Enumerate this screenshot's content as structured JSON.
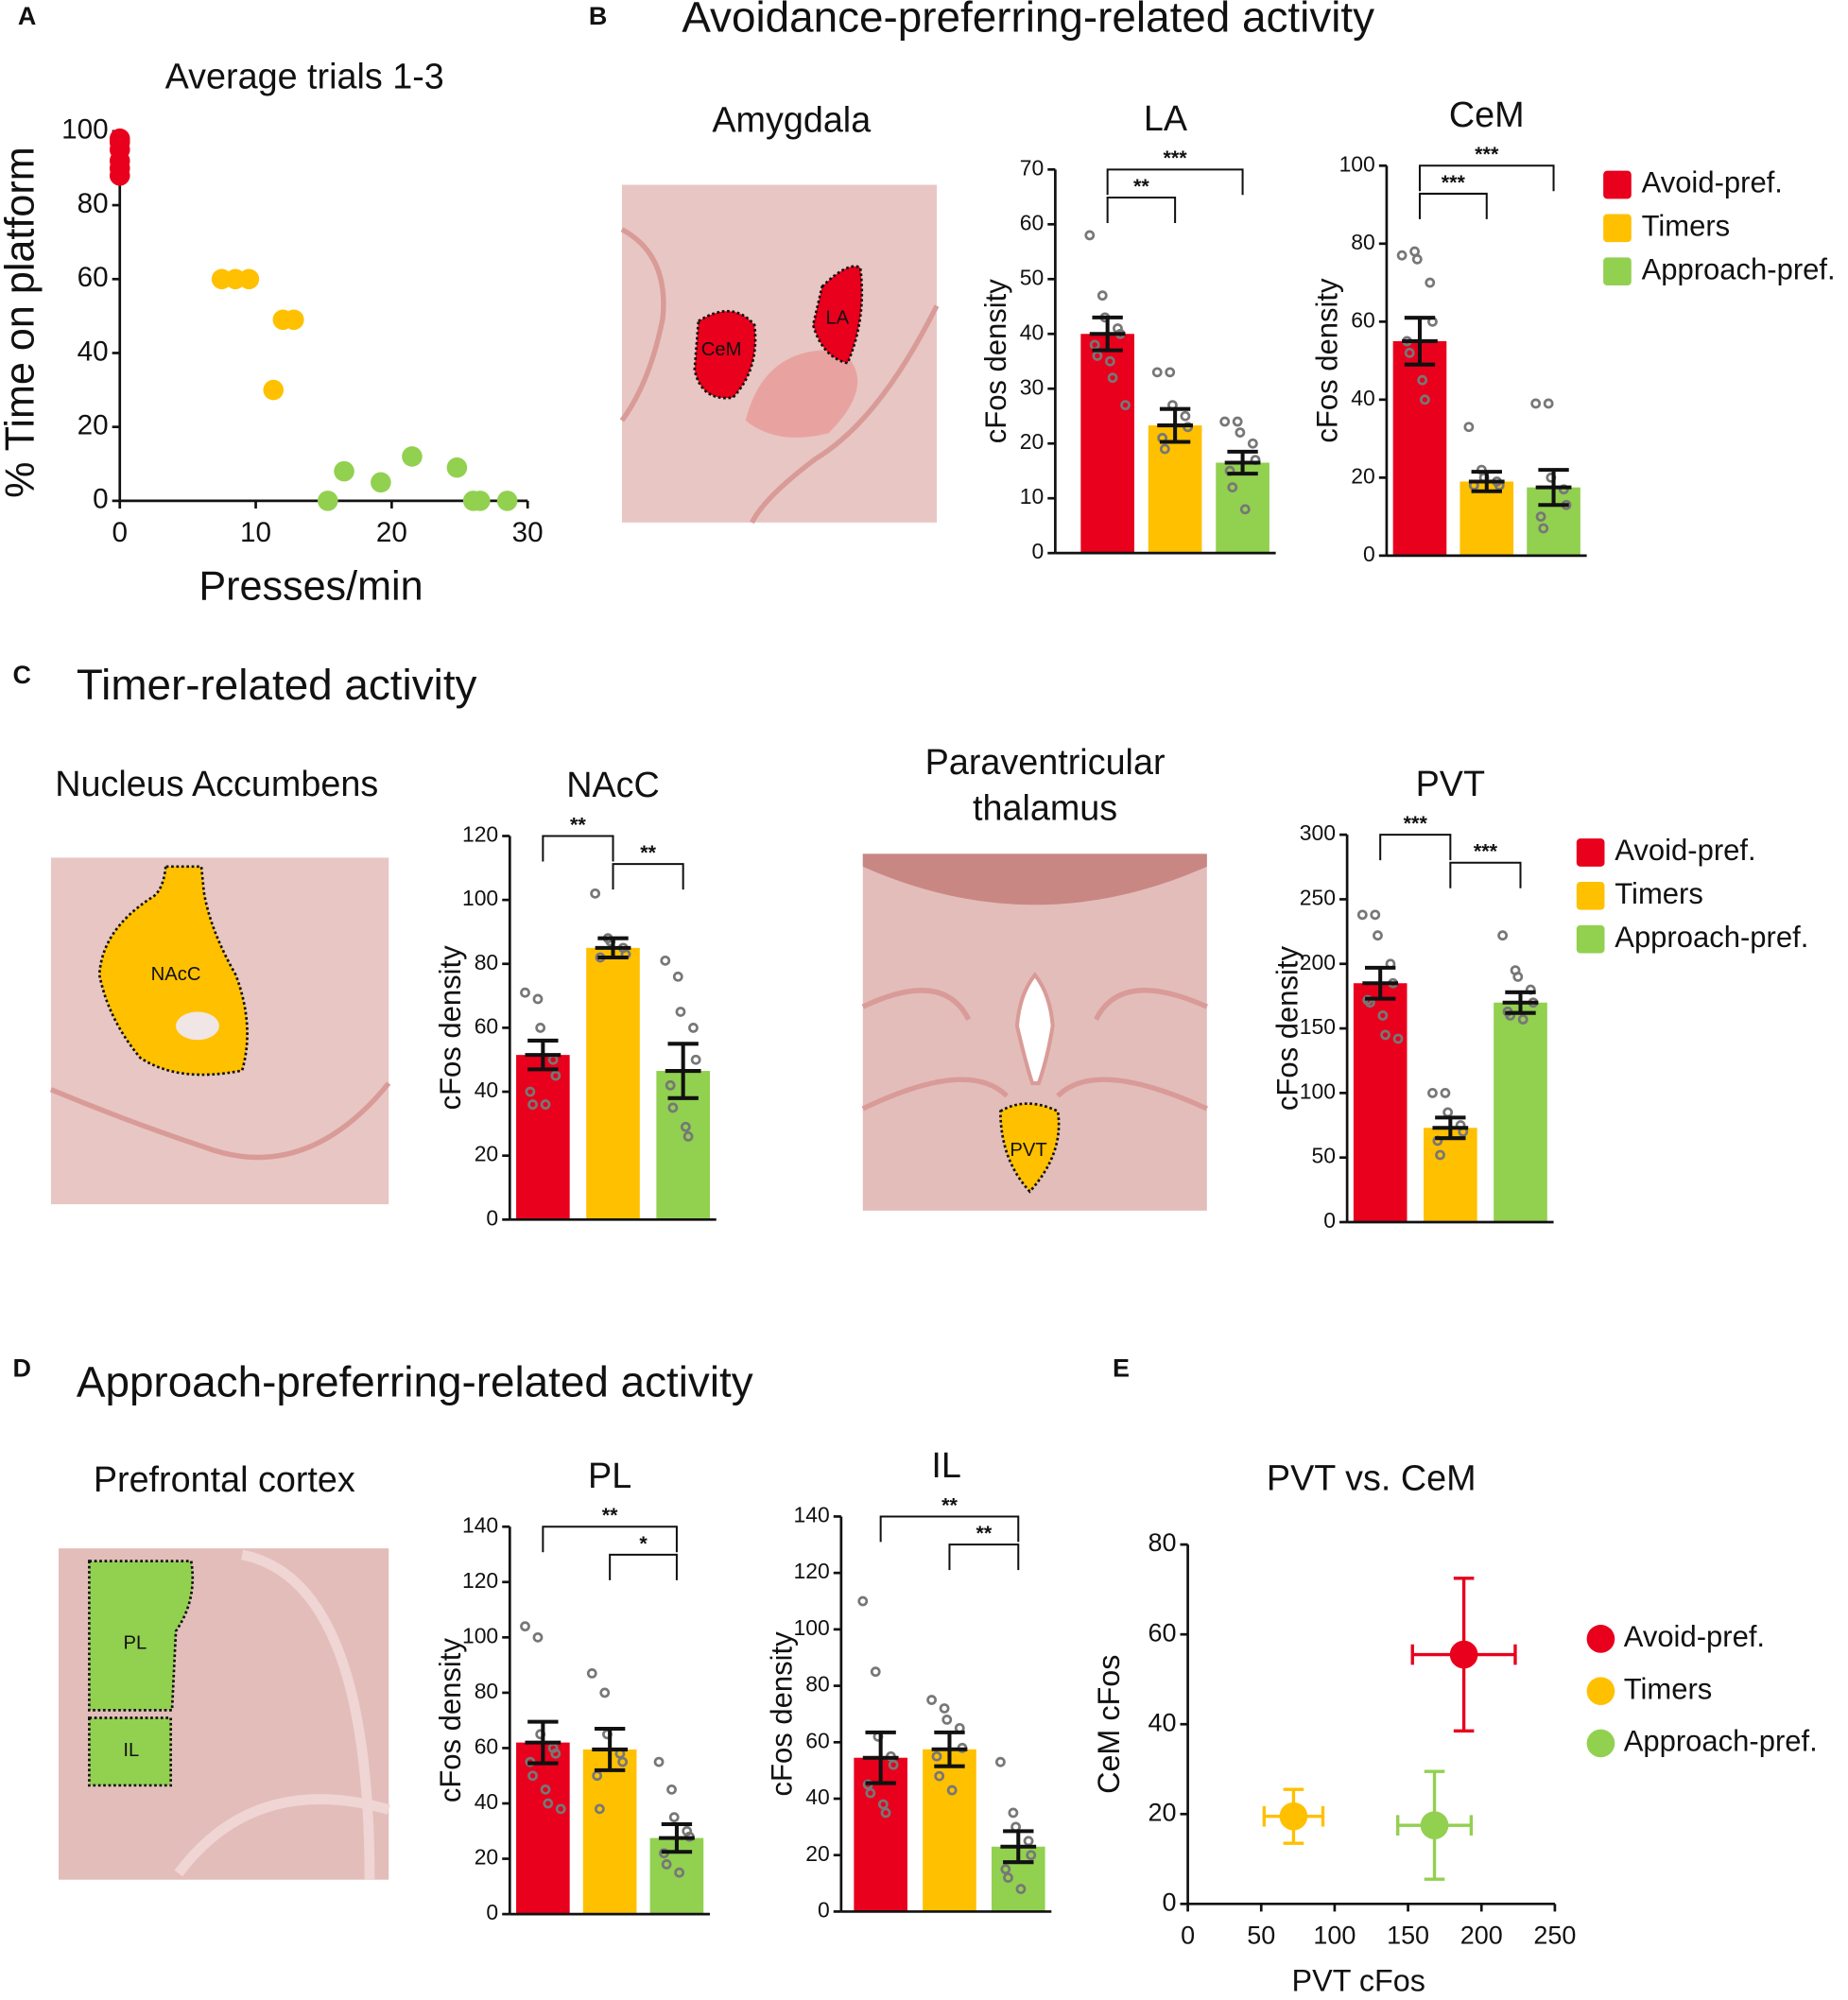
{
  "panel_letters": [
    "A",
    "B",
    "C",
    "D",
    "E"
  ],
  "headings": [
    "Avoidance-preferring-related activity",
    "Timer-related activity",
    "Approach-preferring-related activity"
  ],
  "regions": [
    {
      "title": [
        "Amygdala"
      ],
      "areas": [
        "CeM",
        "LA"
      ]
    },
    {
      "title": [
        "Nucleus Accumbens"
      ],
      "areas": [
        "NAcC"
      ]
    },
    {
      "title": [
        "Paraventricular",
        "thalamus"
      ],
      "areas": [
        "PVT"
      ]
    },
    {
      "title": [
        "Prefrontal cortex"
      ],
      "areas": [
        "PL",
        "IL"
      ]
    }
  ],
  "chart_data": [
    {
      "type": "scatter",
      "title": "Average trials 1-3",
      "xlabel": "Presses/min",
      "ylabel": "% Time on platform",
      "xlim": [
        0,
        30
      ],
      "xticks": [
        0,
        10,
        20,
        30
      ],
      "ylim": [
        0,
        100
      ],
      "yticks": [
        0,
        20,
        40,
        60,
        80,
        100
      ],
      "series": [
        {
          "color": "#e8001c",
          "x": [
            0,
            0,
            0,
            0,
            0,
            0
          ],
          "y": [
            88,
            90,
            92,
            95,
            97,
            98
          ]
        },
        {
          "color": "#ffc000",
          "x": [
            7.5,
            8.5,
            9.5,
            12,
            12.8,
            11.3
          ],
          "y": [
            60,
            60,
            60,
            49,
            49,
            30
          ]
        },
        {
          "color": "#92d050",
          "x": [
            15.3,
            16.5,
            19.2,
            21.5,
            24.8,
            26,
            26.5,
            28.5
          ],
          "y": [
            0,
            8,
            5,
            12,
            9,
            0,
            0,
            0
          ]
        }
      ]
    },
    {
      "type": "bar",
      "title": "LA",
      "ylabel": "cFos density",
      "ylim": [
        0,
        70
      ],
      "yticks": [
        0,
        10,
        20,
        30,
        40,
        50,
        60,
        70
      ],
      "colors": [
        "#e8001c",
        "#ffc000",
        "#92d050"
      ],
      "values": [
        40,
        23.3,
        16.5
      ],
      "errors": [
        3,
        3,
        2
      ],
      "points": [
        [
          58,
          47,
          43,
          41,
          40,
          38,
          36,
          35,
          32,
          27
        ],
        [
          33,
          33,
          27,
          25,
          23,
          21,
          19
        ],
        [
          24,
          24,
          22,
          20,
          17,
          15,
          12,
          8
        ]
      ],
      "brackets": [
        {
          "text": "**",
          "from": 0,
          "to": 1
        },
        {
          "text": "***",
          "from": 0,
          "to": 2
        }
      ]
    },
    {
      "type": "bar",
      "title": "CeM",
      "ylabel": "cFos density",
      "ylim": [
        0,
        100
      ],
      "yticks": [
        0,
        20,
        40,
        60,
        80,
        100
      ],
      "colors": [
        "#e8001c",
        "#ffc000",
        "#92d050"
      ],
      "values": [
        55,
        19,
        17.5
      ],
      "errors": [
        6,
        2.5,
        4.5
      ],
      "points": [
        [
          77,
          78,
          76,
          70,
          60,
          55,
          52,
          45,
          40
        ],
        [
          33,
          22,
          20,
          19,
          18,
          18
        ],
        [
          39,
          39,
          20,
          17,
          13,
          10,
          7
        ]
      ],
      "brackets": [
        {
          "text": "***",
          "from": 0,
          "to": 1
        },
        {
          "text": "***",
          "from": 0,
          "to": 2
        }
      ],
      "legend": [
        {
          "name": "Avoid-pref.",
          "color": "#e8001c"
        },
        {
          "name": "Timers",
          "color": "#ffc000"
        },
        {
          "name": "Approach-pref.",
          "color": "#92d050"
        }
      ]
    },
    {
      "type": "bar",
      "title": "NAcC",
      "ylabel": "cFos density",
      "ylim": [
        0,
        120
      ],
      "yticks": [
        0,
        20,
        40,
        60,
        80,
        100,
        120
      ],
      "colors": [
        "#e8001c",
        "#ffc000",
        "#92d050"
      ],
      "values": [
        51.5,
        85,
        46.5
      ],
      "errors": [
        4.5,
        3,
        8.5
      ],
      "points": [
        [
          71,
          69,
          60,
          50,
          45,
          40,
          36,
          36
        ],
        [
          102,
          88,
          87,
          85,
          83,
          82
        ],
        [
          81,
          76,
          65,
          60,
          50,
          42,
          35,
          29,
          26
        ]
      ],
      "brackets": [
        {
          "text": "**",
          "from": 1,
          "to": 2
        },
        {
          "text": "**",
          "from": 0,
          "to": 1
        }
      ]
    },
    {
      "type": "bar",
      "title": "PVT",
      "ylabel": "cFos density",
      "ylim": [
        0,
        300
      ],
      "yticks": [
        0,
        50,
        100,
        150,
        200,
        250,
        300
      ],
      "colors": [
        "#e8001c",
        "#ffc000",
        "#92d050"
      ],
      "values": [
        185,
        73,
        170
      ],
      "errors": [
        12,
        8,
        8
      ],
      "points": [
        [
          238,
          238,
          222,
          200,
          185,
          172,
          170,
          160,
          145,
          142
        ],
        [
          100,
          100,
          85,
          75,
          70,
          63,
          52
        ],
        [
          222,
          195,
          190,
          180,
          170,
          163,
          160,
          157
        ]
      ],
      "brackets": [
        {
          "text": "***",
          "from": 1,
          "to": 2
        },
        {
          "text": "***",
          "from": 0,
          "to": 1
        }
      ],
      "legend": [
        {
          "name": "Avoid-pref.",
          "color": "#e8001c"
        },
        {
          "name": "Timers",
          "color": "#ffc000"
        },
        {
          "name": "Approach-pref.",
          "color": "#92d050"
        }
      ]
    },
    {
      "type": "bar",
      "title": "PL",
      "ylabel": "cFos density",
      "ylim": [
        0,
        140
      ],
      "yticks": [
        0,
        20,
        40,
        60,
        80,
        100,
        120,
        140
      ],
      "colors": [
        "#e8001c",
        "#ffc000",
        "#92d050"
      ],
      "values": [
        62,
        59.5,
        27.5
      ],
      "errors": [
        7.5,
        7.5,
        5
      ],
      "points": [
        [
          104,
          100,
          65,
          60,
          58,
          55,
          50,
          45,
          40,
          38
        ],
        [
          87,
          80,
          65,
          58,
          55,
          50,
          38
        ],
        [
          55,
          45,
          35,
          30,
          28,
          22,
          18,
          15
        ]
      ],
      "brackets": [
        {
          "text": "*",
          "from": 1,
          "to": 2
        },
        {
          "text": "**",
          "from": 0,
          "to": 2
        }
      ]
    },
    {
      "type": "bar",
      "title": "IL",
      "ylabel": "cFos density",
      "ylim": [
        0,
        140
      ],
      "yticks": [
        0,
        20,
        40,
        60,
        80,
        100,
        120,
        140
      ],
      "colors": [
        "#e8001c",
        "#ffc000",
        "#92d050"
      ],
      "values": [
        54.5,
        57.5,
        23
      ],
      "errors": [
        9,
        6,
        5.5
      ],
      "points": [
        [
          110,
          85,
          62,
          55,
          52,
          45,
          42,
          38,
          35
        ],
        [
          75,
          72,
          68,
          65,
          58,
          55,
          48,
          43
        ],
        [
          53,
          35,
          30,
          25,
          20,
          15,
          12,
          8
        ]
      ],
      "brackets": [
        {
          "text": "**",
          "from": 1,
          "to": 2
        },
        {
          "text": "**",
          "from": 0,
          "to": 2
        }
      ]
    },
    {
      "type": "scatter",
      "title": "PVT vs. CeM",
      "xlabel": "PVT cFos",
      "ylabel": "CeM cFos",
      "xlim": [
        0,
        250
      ],
      "xticks": [
        0,
        50,
        100,
        150,
        200,
        250
      ],
      "ylim": [
        0,
        80
      ],
      "yticks": [
        0,
        20,
        40,
        60,
        80
      ],
      "series": [
        {
          "name": "Avoid-pref.",
          "color": "#e8001c",
          "x": [
            188
          ],
          "y": [
            55.5
          ],
          "xerr": [
            35
          ],
          "yerr": [
            17
          ]
        },
        {
          "name": "Timers",
          "color": "#ffc000",
          "x": [
            72
          ],
          "y": [
            19.5
          ],
          "xerr": [
            20
          ],
          "yerr": [
            6
          ]
        },
        {
          "name": "Approach-pref.",
          "color": "#92d050",
          "x": [
            168
          ],
          "y": [
            17.5
          ],
          "xerr": [
            25
          ],
          "yerr": [
            12
          ]
        }
      ]
    }
  ]
}
